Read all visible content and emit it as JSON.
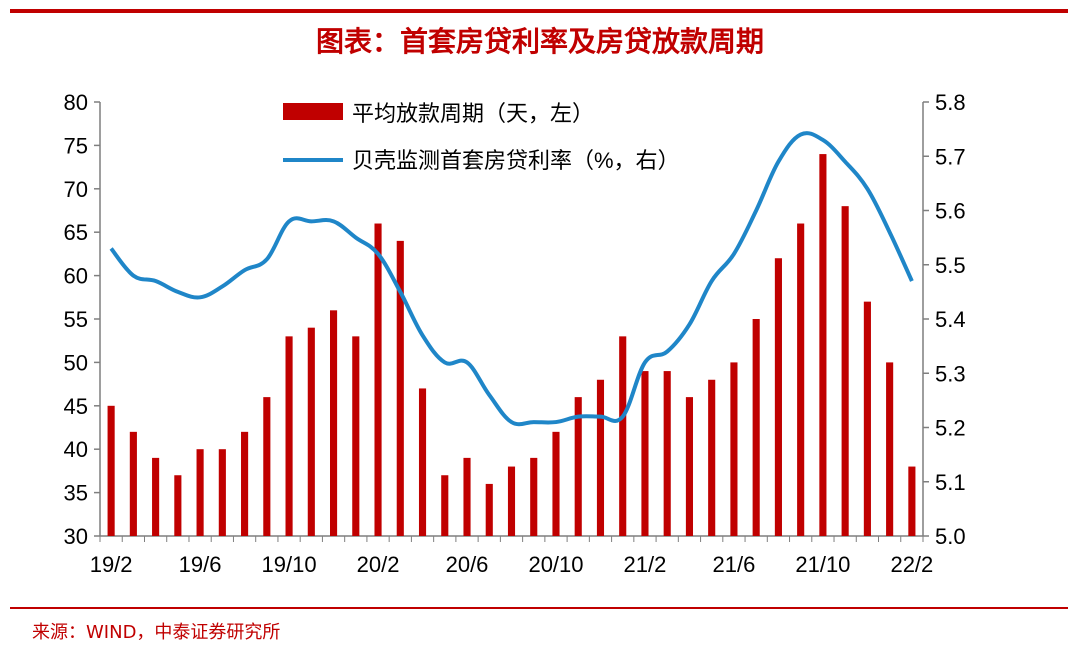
{
  "title": "图表：首套房贷利率及房贷放款周期",
  "source": "来源：WIND，中泰证券研究所",
  "colors": {
    "accent": "#c00000",
    "bar": "#c00000",
    "line": "#1f86c8"
  },
  "chart_data": {
    "type": "bar",
    "x_ticks": [
      "19/2",
      "19/6",
      "19/10",
      "20/2",
      "20/6",
      "20/10",
      "21/2",
      "21/6",
      "21/10",
      "22/2"
    ],
    "categories": [
      "19/2",
      "19/3",
      "19/4",
      "19/5",
      "19/6",
      "19/7",
      "19/8",
      "19/9",
      "19/10",
      "19/11",
      "19/12",
      "20/1",
      "20/2",
      "20/3",
      "20/4",
      "20/5",
      "20/6",
      "20/7",
      "20/8",
      "20/9",
      "20/10",
      "20/11",
      "20/12",
      "21/1",
      "21/2",
      "21/3",
      "21/4",
      "21/5",
      "21/6",
      "21/7",
      "21/8",
      "21/9",
      "21/10",
      "21/11",
      "21/12",
      "22/1",
      "22/2"
    ],
    "left_axis": {
      "ylim": [
        30,
        80
      ],
      "ticks": [
        "80",
        "75",
        "70",
        "65",
        "60",
        "55",
        "50",
        "45",
        "40",
        "35",
        "30"
      ]
    },
    "right_axis": {
      "ylim": [
        5.0,
        5.8
      ],
      "ticks": [
        "5.8",
        "5.7",
        "5.6",
        "5.5",
        "5.4",
        "5.3",
        "5.2",
        "5.1",
        "5.0"
      ]
    },
    "grid": false,
    "legend_position": "top-center",
    "series": [
      {
        "name": "平均放款周期（天，左）",
        "type": "bar",
        "axis": "left",
        "values": [
          45,
          42,
          39,
          37,
          40,
          40,
          42,
          46,
          53,
          54,
          56,
          53,
          66,
          64,
          47,
          37,
          39,
          36,
          38,
          39,
          42,
          46,
          48,
          53,
          49,
          49,
          46,
          48,
          50,
          55,
          62,
          66,
          74,
          68,
          57,
          50,
          38
        ]
      },
      {
        "name": "贝壳监测首套房贷利率（%，右）",
        "type": "line",
        "axis": "right",
        "values": [
          5.53,
          5.48,
          5.47,
          5.45,
          5.44,
          5.46,
          5.49,
          5.51,
          5.58,
          5.58,
          5.58,
          5.55,
          5.52,
          5.45,
          5.37,
          5.32,
          5.32,
          5.26,
          5.21,
          5.21,
          5.21,
          5.22,
          5.22,
          5.22,
          5.32,
          5.34,
          5.39,
          5.47,
          5.52,
          5.6,
          5.69,
          5.74,
          5.73,
          5.69,
          5.64,
          5.56,
          5.47
        ]
      }
    ]
  }
}
